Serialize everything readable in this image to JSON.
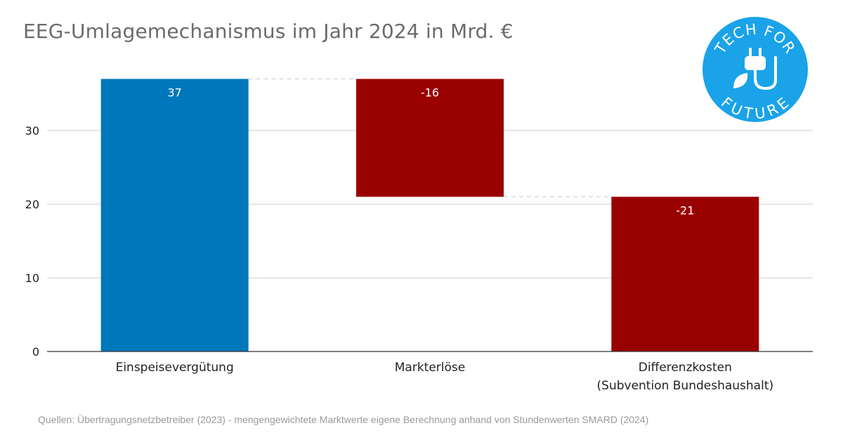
{
  "title": "EEG-Umlagemechanismus im Jahr 2024 in Mrd. €",
  "source": "Quellen: Übertragungsnetzbetreiber (2023) - mengengewichtete Marktwerte eigene Berechnung anhand von Stundenwerten SMARD (2024)",
  "logo": {
    "top_text": "TECH FOR",
    "bottom_text": "FUTURE",
    "icon": "plug-leaf-icon",
    "color": "#1aa3e8"
  },
  "colors": {
    "positive": "#0077bb",
    "negative": "#990000",
    "grid": "#cccccc",
    "axis": "#333333"
  },
  "chart_data": {
    "type": "bar",
    "subtype": "waterfall",
    "categories": [
      "Einspeisevergütung",
      "Markterlöse",
      "Differenzkosten\n(Subvention Bundeshaushalt)"
    ],
    "values": [
      37,
      -16,
      -21
    ],
    "data_labels": [
      "37",
      "-16",
      "-21"
    ],
    "ylim": [
      0,
      37
    ],
    "yticks": [
      0,
      10,
      20,
      30
    ],
    "grid": true,
    "xlabel": "",
    "ylabel": ""
  }
}
